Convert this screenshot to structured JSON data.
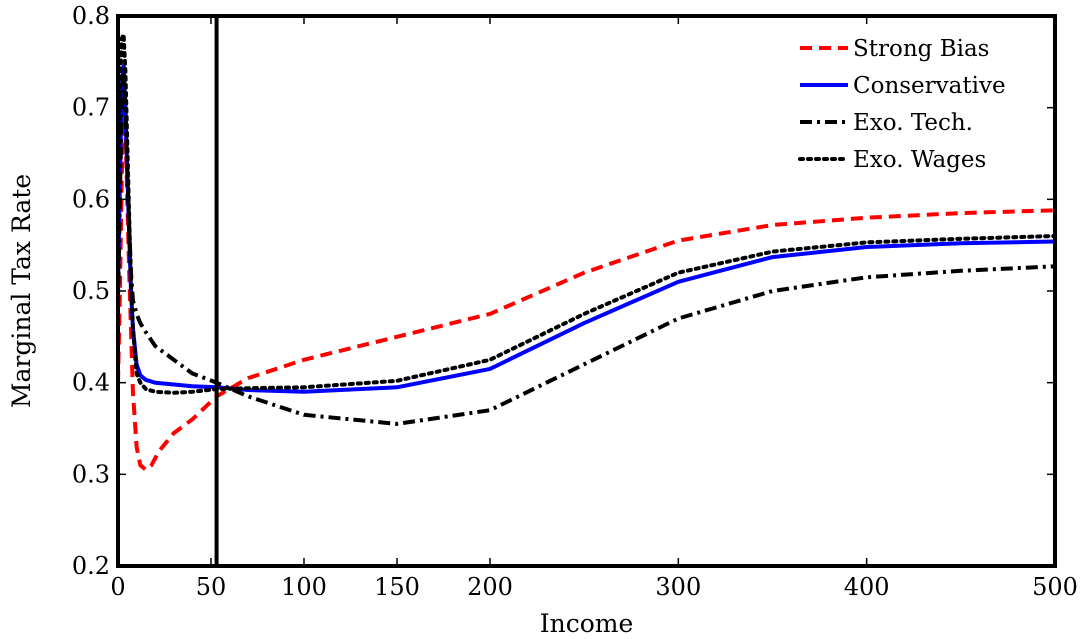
{
  "chart_data": {
    "type": "line",
    "title": "",
    "xlabel": "Income",
    "ylabel": "Marginal Tax Rate",
    "xlim": [
      0,
      500
    ],
    "ylim": [
      0.2,
      0.8
    ],
    "xticks": [
      0,
      50,
      100,
      150,
      200,
      300,
      400,
      500
    ],
    "xtick_labels": [
      "0",
      "50",
      "100",
      "150",
      "200",
      "300",
      "400",
      "500"
    ],
    "yticks": [
      0.2,
      0.3,
      0.4,
      0.5,
      0.6,
      0.7,
      0.8
    ],
    "ytick_labels": [
      "0.2",
      "0.3",
      "0.4",
      "0.5",
      "0.6",
      "0.7",
      "0.8"
    ],
    "x_scale": "piecewise-linear",
    "x_scale_note_breakpoint": 200,
    "grid": false,
    "legend_position": "top-right",
    "vertical_line_x": 53,
    "series": [
      {
        "name": "Strong Bias",
        "color": "#ff0000",
        "style": "dashed",
        "x": [
          0,
          1,
          2,
          3,
          4,
          6,
          8,
          10,
          12,
          15,
          18,
          22,
          30,
          40,
          53,
          70,
          100,
          150,
          200,
          250,
          300,
          350,
          400,
          450,
          500
        ],
        "y": [
          0.4,
          0.5,
          0.62,
          0.71,
          0.68,
          0.52,
          0.39,
          0.33,
          0.31,
          0.305,
          0.31,
          0.325,
          0.345,
          0.36,
          0.385,
          0.405,
          0.425,
          0.45,
          0.475,
          0.52,
          0.555,
          0.572,
          0.58,
          0.585,
          0.588
        ]
      },
      {
        "name": "Conservative",
        "color": "#0000ff",
        "style": "solid",
        "x": [
          0,
          1,
          2,
          3,
          4,
          5,
          6,
          7,
          8,
          10,
          12,
          15,
          20,
          30,
          40,
          53,
          70,
          100,
          150,
          200,
          250,
          300,
          350,
          400,
          450,
          500
        ],
        "y": [
          0.5,
          0.62,
          0.72,
          0.745,
          0.7,
          0.63,
          0.56,
          0.5,
          0.46,
          0.42,
          0.408,
          0.403,
          0.4,
          0.398,
          0.396,
          0.395,
          0.392,
          0.39,
          0.395,
          0.415,
          0.465,
          0.51,
          0.537,
          0.548,
          0.552,
          0.554
        ]
      },
      {
        "name": "Exo. Tech.",
        "color": "#000000",
        "style": "dashdot",
        "x": [
          0,
          1,
          2,
          3,
          4,
          5,
          6,
          7,
          8,
          10,
          12,
          15,
          20,
          30,
          40,
          53,
          70,
          100,
          150,
          200,
          250,
          300,
          350,
          400,
          450,
          500
        ],
        "y": [
          0.48,
          0.6,
          0.7,
          0.735,
          0.7,
          0.63,
          0.57,
          0.52,
          0.49,
          0.475,
          0.465,
          0.455,
          0.44,
          0.425,
          0.41,
          0.4,
          0.385,
          0.365,
          0.355,
          0.37,
          0.42,
          0.47,
          0.5,
          0.515,
          0.522,
          0.527
        ]
      },
      {
        "name": "Exo. Wages",
        "color": "#000000",
        "style": "dotted",
        "x": [
          0,
          1,
          2,
          3,
          4,
          5,
          6,
          7,
          8,
          10,
          12,
          15,
          20,
          30,
          40,
          53,
          70,
          100,
          150,
          200,
          250,
          300,
          350,
          400,
          450,
          500
        ],
        "y": [
          0.6,
          0.72,
          0.775,
          0.78,
          0.74,
          0.66,
          0.58,
          0.51,
          0.46,
          0.41,
          0.4,
          0.393,
          0.39,
          0.389,
          0.39,
          0.393,
          0.394,
          0.395,
          0.402,
          0.425,
          0.475,
          0.52,
          0.543,
          0.553,
          0.557,
          0.56
        ]
      }
    ]
  }
}
